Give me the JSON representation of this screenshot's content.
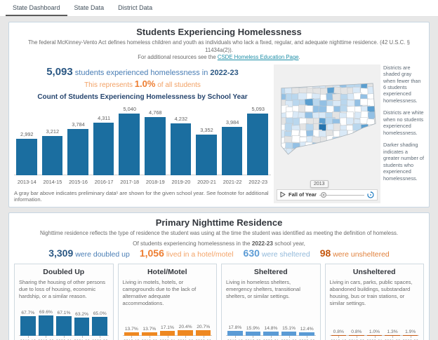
{
  "tabs": [
    {
      "label": "State Dashboard",
      "active": true
    },
    {
      "label": "State Data",
      "active": false
    },
    {
      "label": "District Data",
      "active": false
    }
  ],
  "colors": {
    "main_bar_blue": "#1b6ea0",
    "orange": "#ee8821",
    "steel_blue": "#5b9bd5",
    "dark_orange": "#c65911",
    "link_teal": "#1e8fa8",
    "map_palette": [
      "#ffffff",
      "#e4e4e4",
      "#d9e9f7",
      "#b9d7ee",
      "#93c0e4",
      "#5b9fd0",
      "#2473ae"
    ]
  },
  "section1": {
    "title": "Students Experiencing Homelessness",
    "intro_line1": "The federal McKinney-Vento Act defines homeless children and youth as individuals who lack a fixed, regular, and adequate nighttime residence. (42 U.S.C. § 11434a(2)).",
    "intro_line2_prefix": "For additional resources see the ",
    "intro_link": "CSDE Homeless Education Page",
    "intro_line2_suffix": ".",
    "stat1_value": "5,093",
    "stat1_text": " students experienced homelessness in ",
    "stat1_year": "2022-23",
    "stat2_prefix": "This represents ",
    "stat2_value": "1.0%",
    "stat2_suffix": " of all students",
    "footnote": "A gray bar above indicates preliminary data¹ are shown for the given school year. See footnote for additional information.",
    "map_notes": [
      "Districts are shaded gray when fewer than 6 students experienced homelessness.",
      "Districts are white when no students experienced homelessness.",
      "Darker shading indicates a greater number of students who experienced homelessness."
    ],
    "time_control": {
      "label": "Fall of Year",
      "tooltip": "2013"
    }
  },
  "section2": {
    "title": "Primary Nighttime Residence",
    "sub": "Nighttime residence reflects the type of residence the student was using at the time the student was identified as meeting the definition of homeless.",
    "of_prefix": "Of students experiencing homelessness in the ",
    "of_year": "2022-23",
    "of_suffix": " school year,",
    "stats": [
      {
        "value": "3,309",
        "label": "were doubled up",
        "value_color": "#2a5783",
        "label_color": "#4a7eb5"
      },
      {
        "value": "1,056",
        "label": "lived in a hotel/motel",
        "value_color": "#ed7d31",
        "label_color": "#f3a367"
      },
      {
        "value": "630",
        "label": "were sheltered",
        "value_color": "#5b9bd5",
        "label_color": "#92b9da"
      },
      {
        "value": "98",
        "label": "were unsheltered",
        "value_color": "#c4570e",
        "label_color": "#e0813c"
      }
    ],
    "panels": [
      {
        "title": "Doubled Up",
        "desc": "Sharing the housing of other persons due to loss of housing, economic hardship, or a similar reason."
      },
      {
        "title": "Hotel/Motel",
        "desc": "Living in motels, hotels, or campgrounds due to the lack of alternative adequate accommodations."
      },
      {
        "title": "Sheltered",
        "desc": "Living in homeless shelters, emergency shelters, transitional shelters, or similar settings."
      },
      {
        "title": "Unsheltered",
        "desc": "Living in cars, parks, public spaces, abandoned buildings, substandard housing, bus or train stations, or similar settings."
      }
    ]
  },
  "chart_data": [
    {
      "type": "bar",
      "title": "Count of Students Experiencing Homelessness by School Year",
      "categories": [
        "2013-14",
        "2014-15",
        "2015-16",
        "2016-17",
        "2017-18",
        "2018-19",
        "2019-20",
        "2020-21",
        "2021-22",
        "2022-23"
      ],
      "values": [
        2992,
        3212,
        3784,
        4311,
        5040,
        4768,
        4232,
        3352,
        3984,
        5093
      ],
      "value_labels": [
        "2,992",
        "3,212",
        "3,784",
        "4,311",
        "5,040",
        "4,768",
        "4,232",
        "3,352",
        "3,984",
        "5,093"
      ],
      "color": "#1b6ea0",
      "ylim": [
        0,
        5500
      ],
      "grid": false,
      "legend": "none"
    },
    {
      "type": "bar",
      "title": "Doubled Up (% of homeless students)",
      "categories": [
        "2018-19",
        "2019-20",
        "2020-21",
        "2021-22",
        "2022-23"
      ],
      "values": [
        67.7,
        69.6,
        67.1,
        63.2,
        65.0
      ],
      "value_labels": [
        "67.7%",
        "69.6%",
        "67.1%",
        "63.2%",
        "65.0%"
      ],
      "color": "#1b6ea0",
      "ylim": [
        0,
        80
      ]
    },
    {
      "type": "bar",
      "title": "Hotel/Motel (% of homeless students)",
      "categories": [
        "2018-19",
        "2019-20",
        "2020-21",
        "2021-22",
        "2022-23"
      ],
      "values": [
        13.7,
        13.7,
        17.1,
        20.4,
        20.7
      ],
      "value_labels": [
        "13.7%",
        "13.7%",
        "17.1%",
        "20.4%",
        "20.7%"
      ],
      "color": "#ee8821",
      "ylim": [
        0,
        80
      ]
    },
    {
      "type": "bar",
      "title": "Sheltered (% of homeless students)",
      "categories": [
        "2018-19",
        "2019-20",
        "2020-21",
        "2021-22",
        "2022-23"
      ],
      "values": [
        17.8,
        15.9,
        14.8,
        15.1,
        12.4
      ],
      "value_labels": [
        "17.8%",
        "15.9%",
        "14.8%",
        "15.1%",
        "12.4%"
      ],
      "color": "#5b9bd5",
      "ylim": [
        0,
        80
      ]
    },
    {
      "type": "bar",
      "title": "Unsheltered (% of homeless students)",
      "categories": [
        "2018-19",
        "2019-20",
        "2020-21",
        "2021-22",
        "2022-23"
      ],
      "values": [
        0.8,
        0.8,
        1.0,
        1.3,
        1.9
      ],
      "value_labels": [
        "0.8%",
        "0.8%",
        "1.0%",
        "1.3%",
        "1.9%"
      ],
      "color": "#c65911",
      "ylim": [
        0,
        80
      ]
    }
  ]
}
